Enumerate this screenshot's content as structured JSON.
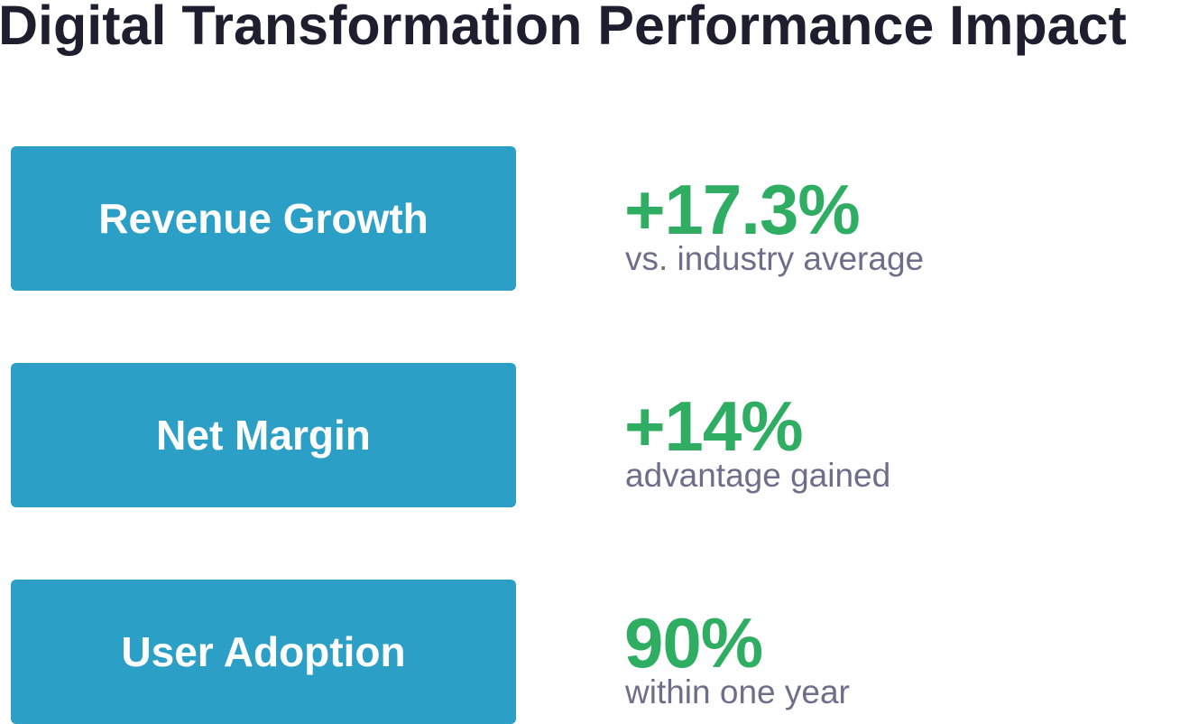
{
  "title": "Digital Transformation Performance Impact",
  "colors": {
    "title": "#1e1e2e",
    "label_box": "#2b9fc6",
    "label_text": "#ffffff",
    "value": "#2ead63",
    "caption": "#6f6e8a"
  },
  "metrics": [
    {
      "label": "Revenue Growth",
      "value": "+17.3%",
      "caption": "vs. industry average"
    },
    {
      "label": "Net Margin",
      "value": "+14%",
      "caption": "advantage gained"
    },
    {
      "label": "User Adoption",
      "value": "90%",
      "caption": "within one year"
    }
  ]
}
